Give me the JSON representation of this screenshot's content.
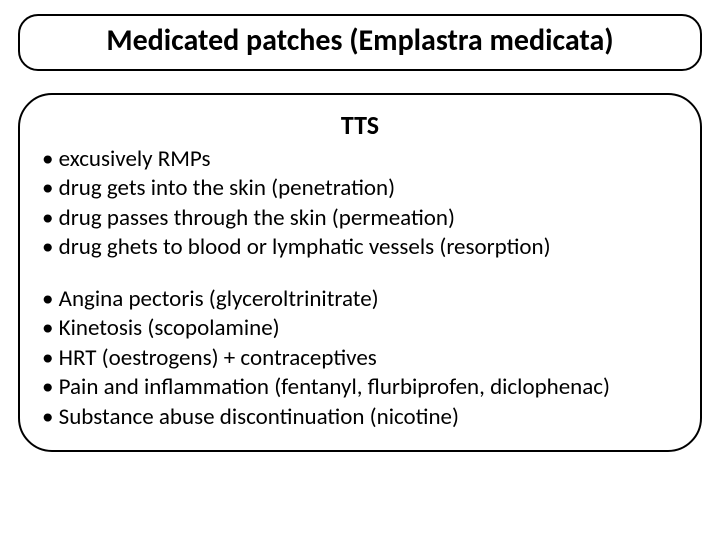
{
  "colors": {
    "background": "#ffffff",
    "text": "#000000",
    "border": "#000000"
  },
  "typography": {
    "title_fontsize": 30,
    "title_weight": 700,
    "subheading_fontsize": 26,
    "subheading_weight": 700,
    "bullet_fontsize": 23,
    "bullet_lineheight": 1.28,
    "font_family": "Segoe UI / Calibri / sans-serif"
  },
  "layout": {
    "slide_width": 720,
    "slide_height": 540,
    "title_border_radius": 20,
    "content_border_radius": 34,
    "border_width": 2
  },
  "title": "Medicated patches (Emplastra medicata)",
  "subheading": "TTS",
  "group1": {
    "b1": "• excusively RMPs",
    "b2": "• drug gets into the skin (penetration)",
    "b3": "• drug passes through the skin (permeation)",
    "b4": "• drug ghets to blood or lymphatic vessels (resorption)"
  },
  "group2": {
    "b1": "• Angina pectoris (glyceroltrinitrate)",
    "b2": "• Kinetosis (scopolamine)",
    "b3": "• HRT (oestrogens) + contraceptives",
    "b4": "• Pain and inflammation (fentanyl, flurbiprofen, diclophenac)",
    "b5": "• Substance abuse discontinuation (nicotine)"
  }
}
